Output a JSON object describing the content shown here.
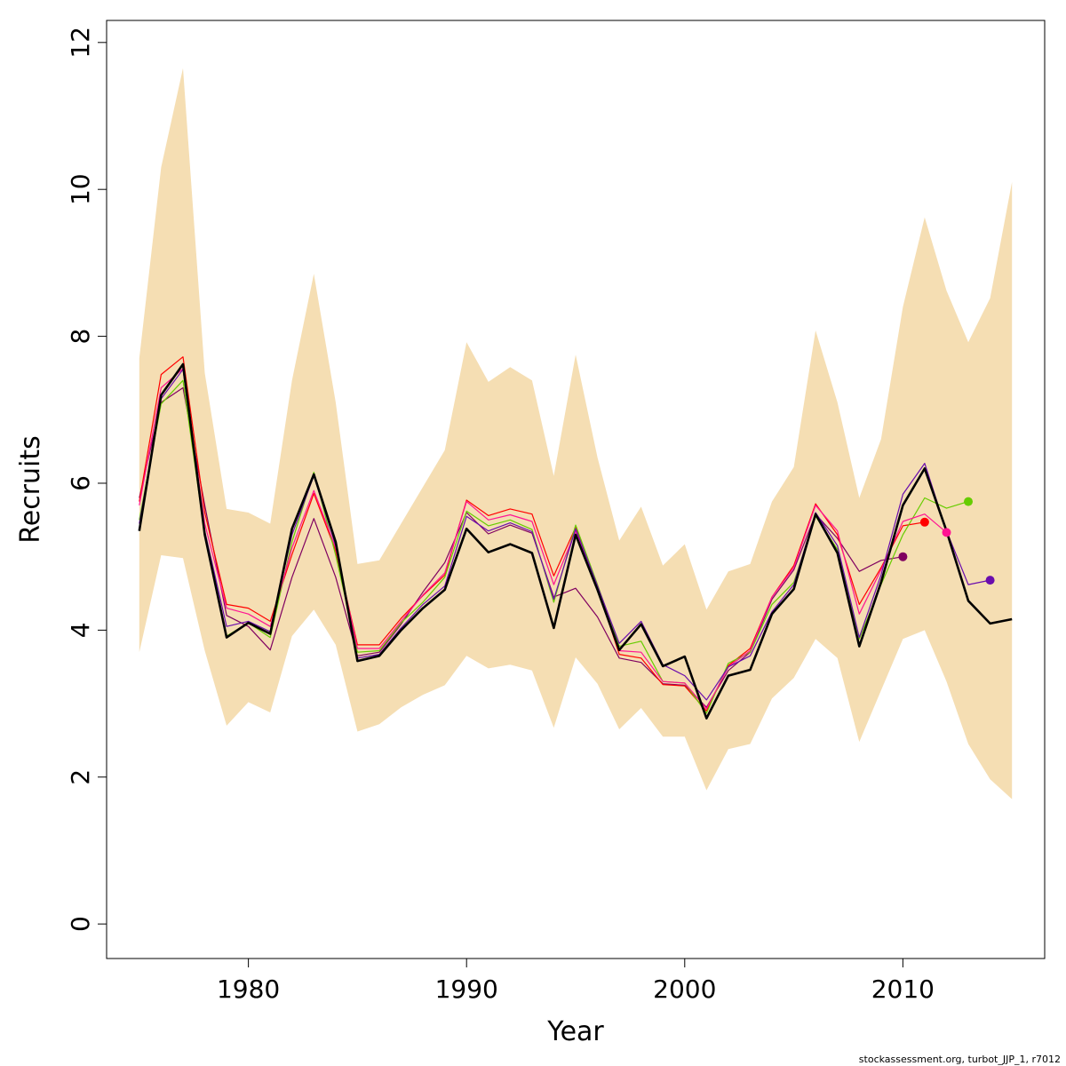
{
  "chart_data": {
    "type": "line",
    "xlabel": "Year",
    "ylabel": "Recruits",
    "xlim": [
      1973.5,
      2016.5
    ],
    "ylim": [
      -0.47,
      12.3
    ],
    "x_ticks": [
      1980,
      1990,
      2000,
      2010
    ],
    "y_ticks": [
      0,
      2,
      4,
      6,
      8,
      10,
      12
    ],
    "grid": false,
    "legend": "none",
    "footnote": "stockassessment.org, turbot_JJP_1, r7012",
    "colors": {
      "band": "#f5deb3",
      "main_line": "#000000",
      "peel_1": "#800060",
      "peel_2": "#ff0000",
      "peel_3": "#66cc00",
      "peel_4": "#ff1493",
      "peel_5": "#6a0dad"
    },
    "band": {
      "x": [
        1975,
        1976,
        1977,
        1978,
        1979,
        1980,
        1981,
        1982,
        1983,
        1984,
        1985,
        1986,
        1987,
        1988,
        1989,
        1990,
        1991,
        1992,
        1993,
        1994,
        1995,
        1996,
        1997,
        1998,
        1999,
        2000,
        2001,
        2002,
        2003,
        2004,
        2005,
        2006,
        2007,
        2008,
        2009,
        2010,
        2011,
        2012,
        2013,
        2014,
        2015
      ],
      "upper": [
        7.7,
        10.3,
        11.65,
        7.5,
        5.65,
        5.6,
        5.45,
        7.4,
        8.85,
        7.1,
        4.9,
        4.95,
        5.45,
        5.95,
        6.45,
        7.92,
        7.38,
        7.58,
        7.4,
        6.1,
        7.75,
        6.35,
        5.22,
        5.68,
        4.88,
        5.17,
        4.28,
        4.8,
        4.9,
        5.75,
        6.22,
        8.08,
        7.1,
        5.8,
        6.6,
        8.4,
        9.62,
        8.62,
        7.92,
        8.52,
        10.1
      ],
      "lower": [
        3.7,
        5.02,
        4.98,
        3.72,
        2.7,
        3.02,
        2.88,
        3.92,
        4.28,
        3.8,
        2.62,
        2.72,
        2.95,
        3.12,
        3.25,
        3.65,
        3.48,
        3.53,
        3.45,
        2.67,
        3.63,
        3.27,
        2.65,
        2.94,
        2.55,
        2.55,
        1.82,
        2.38,
        2.45,
        3.07,
        3.35,
        3.88,
        3.62,
        2.48,
        3.18,
        3.88,
        4.0,
        3.3,
        2.45,
        1.97,
        1.7
      ]
    },
    "series": [
      {
        "x": [
          1975,
          1976,
          1977,
          1978,
          1979,
          1980,
          1981,
          1982,
          1983,
          1984,
          1985,
          1986,
          1987,
          1988,
          1989,
          1990,
          1991,
          1992,
          1993,
          1994,
          1995,
          1996,
          1997,
          1998,
          1999,
          2000,
          2001,
          2002,
          2003,
          2004,
          2005,
          2006,
          2007,
          2008,
          2009,
          2010,
          2011,
          2012,
          2013,
          2014,
          2015
        ],
        "y": [
          5.35,
          7.2,
          7.62,
          5.3,
          3.9,
          4.1,
          3.95,
          5.38,
          6.12,
          5.2,
          3.58,
          3.65,
          4.0,
          4.3,
          4.55,
          5.38,
          5.06,
          5.17,
          5.05,
          4.03,
          5.3,
          4.55,
          3.73,
          4.08,
          3.51,
          3.64,
          2.8,
          3.38,
          3.46,
          4.22,
          4.56,
          5.58,
          5.05,
          3.78,
          4.65,
          5.7,
          6.2,
          5.35,
          4.4,
          4.09,
          4.15
        ],
        "color": "#000000",
        "width": 2.6,
        "endpoint": false
      },
      {
        "x": [
          1975,
          1976,
          1977,
          1978,
          1979,
          1980,
          1981,
          1982,
          1983,
          1984,
          1985,
          1986,
          1987,
          1988,
          1989,
          1990,
          1991,
          1992,
          1993,
          1994,
          1995,
          1996,
          1997,
          1998,
          1999,
          2000,
          2001,
          2002,
          2003,
          2004,
          2005,
          2006,
          2007,
          2008,
          2009,
          2010
        ],
        "y": [
          5.8,
          7.1,
          7.3,
          5.7,
          4.2,
          4.05,
          3.73,
          4.72,
          5.52,
          4.72,
          3.65,
          3.7,
          4.08,
          4.52,
          4.92,
          5.6,
          5.31,
          5.43,
          5.32,
          4.45,
          4.57,
          4.18,
          3.62,
          3.56,
          3.27,
          3.25,
          2.95,
          3.45,
          3.7,
          4.42,
          4.82,
          5.58,
          5.25,
          4.8,
          4.95,
          5.0
        ],
        "color": "#800060",
        "width": 1.2,
        "endpoint": true
      },
      {
        "x": [
          1975,
          1976,
          1977,
          1978,
          1979,
          1980,
          1981,
          1982,
          1983,
          1984,
          1985,
          1986,
          1987,
          1988,
          1989,
          1990,
          1991,
          1992,
          1993,
          1994,
          1995,
          1996,
          1997,
          1998,
          1999,
          2000,
          2001,
          2002,
          2003,
          2004,
          2005,
          2006,
          2007,
          2008,
          2009,
          2010,
          2011
        ],
        "y": [
          5.75,
          7.48,
          7.72,
          5.6,
          4.35,
          4.3,
          4.12,
          5.03,
          5.86,
          5.08,
          3.8,
          3.8,
          4.16,
          4.47,
          4.75,
          5.77,
          5.56,
          5.65,
          5.58,
          4.74,
          5.4,
          4.58,
          3.67,
          3.62,
          3.26,
          3.24,
          2.9,
          3.52,
          3.75,
          4.45,
          4.88,
          5.72,
          5.3,
          4.35,
          4.85,
          5.42,
          5.47
        ],
        "color": "#ff0000",
        "width": 1.2,
        "endpoint": true
      },
      {
        "x": [
          1975,
          1976,
          1977,
          1978,
          1979,
          1980,
          1981,
          1982,
          1983,
          1984,
          1985,
          1986,
          1987,
          1988,
          1989,
          1990,
          1991,
          1992,
          1993,
          1994,
          1995,
          1996,
          1997,
          1998,
          1999,
          2000,
          2001,
          2002,
          2003,
          2004,
          2005,
          2006,
          2007,
          2008,
          2009,
          2010,
          2011,
          2012,
          2013
        ],
        "y": [
          5.5,
          7.08,
          7.4,
          5.3,
          3.92,
          4.1,
          3.9,
          5.2,
          6.15,
          5.02,
          3.7,
          3.72,
          4.1,
          4.38,
          4.72,
          5.62,
          5.42,
          5.5,
          5.37,
          4.38,
          5.43,
          4.62,
          3.78,
          3.85,
          3.3,
          3.28,
          2.87,
          3.55,
          3.7,
          4.35,
          4.65,
          5.55,
          5.1,
          3.88,
          4.62,
          5.3,
          5.8,
          5.66,
          5.75
        ],
        "color": "#66cc00",
        "width": 1.2,
        "endpoint": true
      },
      {
        "x": [
          1975,
          1976,
          1977,
          1978,
          1979,
          1980,
          1981,
          1982,
          1983,
          1984,
          1985,
          1986,
          1987,
          1988,
          1989,
          1990,
          1991,
          1992,
          1993,
          1994,
          1995,
          1996,
          1997,
          1998,
          1999,
          2000,
          2001,
          2002,
          2003,
          2004,
          2005,
          2006,
          2007,
          2008,
          2009,
          2010,
          2011,
          2012
        ],
        "y": [
          5.7,
          7.3,
          7.56,
          5.45,
          4.3,
          4.22,
          4.05,
          5.12,
          5.9,
          5.12,
          3.75,
          3.75,
          4.12,
          4.48,
          4.78,
          5.75,
          5.5,
          5.57,
          5.48,
          4.62,
          5.35,
          4.6,
          3.72,
          3.7,
          3.3,
          3.28,
          2.93,
          3.5,
          3.72,
          4.45,
          4.85,
          5.7,
          5.35,
          4.22,
          4.82,
          5.48,
          5.58,
          5.33
        ],
        "color": "#ff1493",
        "width": 1.2,
        "endpoint": true
      },
      {
        "x": [
          1975,
          1976,
          1977,
          1978,
          1979,
          1980,
          1981,
          1982,
          1983,
          1984,
          1985,
          1986,
          1987,
          1988,
          1989,
          1990,
          1991,
          1992,
          1993,
          1994,
          1995,
          1996,
          1997,
          1998,
          1999,
          2000,
          2001,
          2002,
          2003,
          2004,
          2005,
          2006,
          2007,
          2008,
          2009,
          2010,
          2011,
          2012,
          2013,
          2014
        ],
        "y": [
          5.45,
          7.15,
          7.55,
          5.35,
          4.05,
          4.12,
          3.98,
          5.3,
          6.1,
          5.15,
          3.62,
          3.67,
          4.03,
          4.35,
          4.6,
          5.55,
          5.35,
          5.46,
          5.34,
          4.42,
          5.38,
          4.6,
          3.82,
          4.12,
          3.53,
          3.38,
          3.05,
          3.5,
          3.65,
          4.25,
          4.62,
          5.6,
          5.15,
          3.9,
          4.75,
          5.85,
          6.27,
          5.35,
          4.62,
          4.68
        ],
        "color": "#6a0dad",
        "width": 1.2,
        "endpoint": true
      }
    ]
  }
}
